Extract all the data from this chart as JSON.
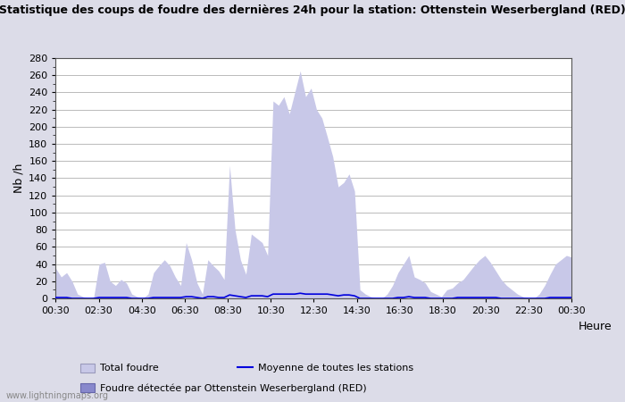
{
  "title": "Statistique des coups de foudre des dernières 24h pour la station: Ottenstein Weserbergland (RED)",
  "xlabel": "Heure",
  "ylabel": "Nb /h",
  "ylim": [
    0,
    280
  ],
  "yticks": [
    0,
    20,
    40,
    60,
    80,
    100,
    120,
    140,
    160,
    180,
    200,
    220,
    240,
    260,
    280
  ],
  "x_labels": [
    "00:30",
    "02:30",
    "04:30",
    "06:30",
    "08:30",
    "10:30",
    "12:30",
    "14:30",
    "16:30",
    "18:30",
    "20:30",
    "22:30",
    "00:30"
  ],
  "watermark": "www.lightningmaps.org",
  "bg_color": "#dcdce8",
  "plot_bg_color": "#ffffff",
  "total_foudre_color": "#c8c8e8",
  "detected_color": "#8888cc",
  "moyenne_color": "#0000dd",
  "total_foudre": [
    35,
    25,
    30,
    20,
    5,
    2,
    0,
    2,
    40,
    42,
    20,
    15,
    22,
    18,
    5,
    2,
    0,
    5,
    30,
    38,
    45,
    38,
    25,
    15,
    65,
    45,
    18,
    5,
    45,
    38,
    32,
    22,
    155,
    80,
    45,
    28,
    75,
    70,
    65,
    50,
    230,
    225,
    235,
    215,
    240,
    265,
    235,
    245,
    220,
    210,
    188,
    165,
    130,
    135,
    145,
    125,
    10,
    5,
    2,
    0,
    0,
    5,
    15,
    30,
    40,
    50,
    25,
    22,
    18,
    8,
    5,
    2,
    10,
    12,
    18,
    22,
    30,
    38,
    45,
    50,
    42,
    32,
    22,
    15,
    10,
    5,
    2,
    0,
    0,
    5,
    15,
    28,
    40,
    45,
    50,
    48
  ],
  "moyenne": [
    1,
    1,
    1,
    0,
    0,
    0,
    0,
    0,
    1,
    1,
    1,
    1,
    1,
    1,
    0,
    0,
    0,
    0,
    1,
    1,
    1,
    1,
    1,
    1,
    2,
    2,
    1,
    0,
    2,
    2,
    1,
    1,
    4,
    3,
    2,
    1,
    3,
    3,
    3,
    2,
    5,
    5,
    5,
    5,
    5,
    6,
    5,
    5,
    5,
    5,
    5,
    4,
    3,
    4,
    4,
    3,
    0,
    0,
    0,
    0,
    0,
    0,
    0,
    1,
    1,
    2,
    1,
    1,
    1,
    0,
    0,
    0,
    0,
    0,
    1,
    1,
    1,
    1,
    1,
    1,
    1,
    1,
    0,
    0,
    0,
    0,
    0,
    0,
    0,
    0,
    0,
    1,
    1,
    1,
    1,
    1
  ]
}
